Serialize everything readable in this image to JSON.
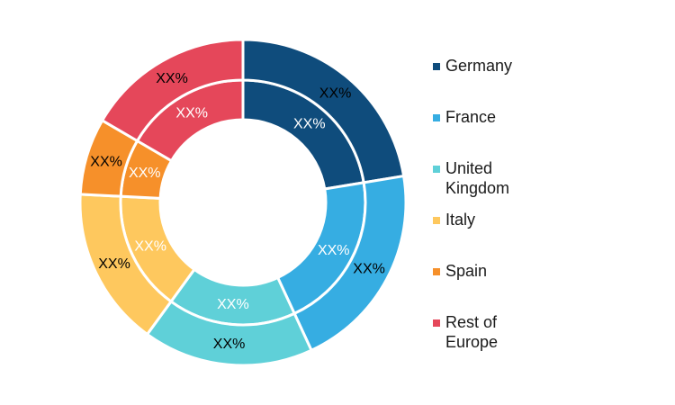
{
  "chart_data": {
    "type": "pie",
    "categories": [
      "Germany",
      "France",
      "United Kingdom",
      "Italy",
      "Spain",
      "Rest of Europe"
    ],
    "colors": [
      "#0f4c7c",
      "#36ade2",
      "#5fd0d8",
      "#fec85e",
      "#f6902a",
      "#e5475a"
    ],
    "series": [
      {
        "ring": "inner",
        "values": [
          22.4,
          20.7,
          16.9,
          15.8,
          7.6,
          16.6
        ],
        "labels": [
          "XX%",
          "XX%",
          "XX%",
          "XX%",
          "XX%",
          "XX%"
        ]
      },
      {
        "ring": "outer",
        "values": [
          22.4,
          20.7,
          16.9,
          15.8,
          7.6,
          16.6
        ],
        "labels": [
          "XX%",
          "XX%",
          "XX%",
          "XX%",
          "XX%",
          "XX%"
        ]
      }
    ],
    "legend_position": "right"
  }
}
